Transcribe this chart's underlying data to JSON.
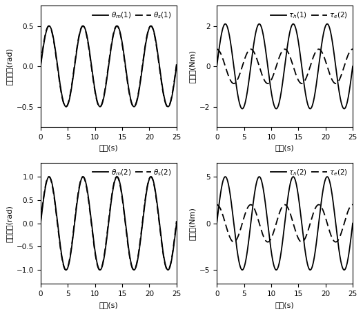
{
  "t_end": 25,
  "n_points": 3000,
  "plots": [
    {
      "row": 0,
      "col": 0,
      "solid_amp": 0.5,
      "solid_freq": 0.16,
      "solid_phase": 0.0,
      "dash_amp": 0.5,
      "dash_freq": 0.16,
      "dash_phase": 0.05,
      "ylim": [
        -0.75,
        0.75
      ],
      "yticks": [
        -0.5,
        0,
        0.5
      ],
      "ylabel_cn": "位置跟踪",
      "ylabel_unit": "(rad)",
      "xlabel_cn": "时间",
      "xlabel_unit": "(s)",
      "legend_solid": "$\\theta_m(1)$",
      "legend_dash": "$\\theta_s(1)$"
    },
    {
      "row": 0,
      "col": 1,
      "solid_amp": 2.1,
      "solid_freq": 0.16,
      "solid_phase": 0.0,
      "dash_amp": 0.85,
      "dash_freq": 0.16,
      "dash_phase": 1.5708,
      "ylim": [
        -3.0,
        3.0
      ],
      "yticks": [
        -2,
        0,
        2
      ],
      "ylabel_cn": "力反馈",
      "ylabel_unit": "(Nm)",
      "xlabel_cn": "时间",
      "xlabel_unit": "(s)",
      "legend_solid": "$\\tau_h(1)$",
      "legend_dash": "$\\tau_e(2)$"
    },
    {
      "row": 1,
      "col": 0,
      "solid_amp": 1.0,
      "solid_freq": 0.16,
      "solid_phase": 0.0,
      "dash_amp": 1.0,
      "dash_freq": 0.16,
      "dash_phase": 0.05,
      "ylim": [
        -1.3,
        1.3
      ],
      "yticks": [
        -1,
        -0.5,
        0,
        0.5,
        1
      ],
      "ylabel_cn": "位置追踪",
      "ylabel_unit": "(rad)",
      "xlabel_cn": "时间",
      "xlabel_unit": "(s)",
      "legend_solid": "$\\theta_m(2)$",
      "legend_dash": "$\\theta_s(2)$"
    },
    {
      "row": 1,
      "col": 1,
      "solid_amp": 5.0,
      "solid_freq": 0.16,
      "solid_phase": 0.0,
      "dash_amp": 2.0,
      "dash_freq": 0.16,
      "dash_phase": 1.5708,
      "ylim": [
        -6.5,
        6.5
      ],
      "yticks": [
        -5,
        0,
        5
      ],
      "ylabel_cn": "力反馈",
      "ylabel_unit": "(Nm)",
      "xlabel_cn": "时间",
      "xlabel_unit": "(s)",
      "legend_solid": "$\\tau_h(2)$",
      "legend_dash": "$\\tau_e(2)$"
    }
  ],
  "background_color": "#ffffff",
  "line_color": "#000000",
  "xticks": [
    0,
    5,
    10,
    15,
    20,
    25
  ],
  "xlim": [
    0,
    25
  ]
}
